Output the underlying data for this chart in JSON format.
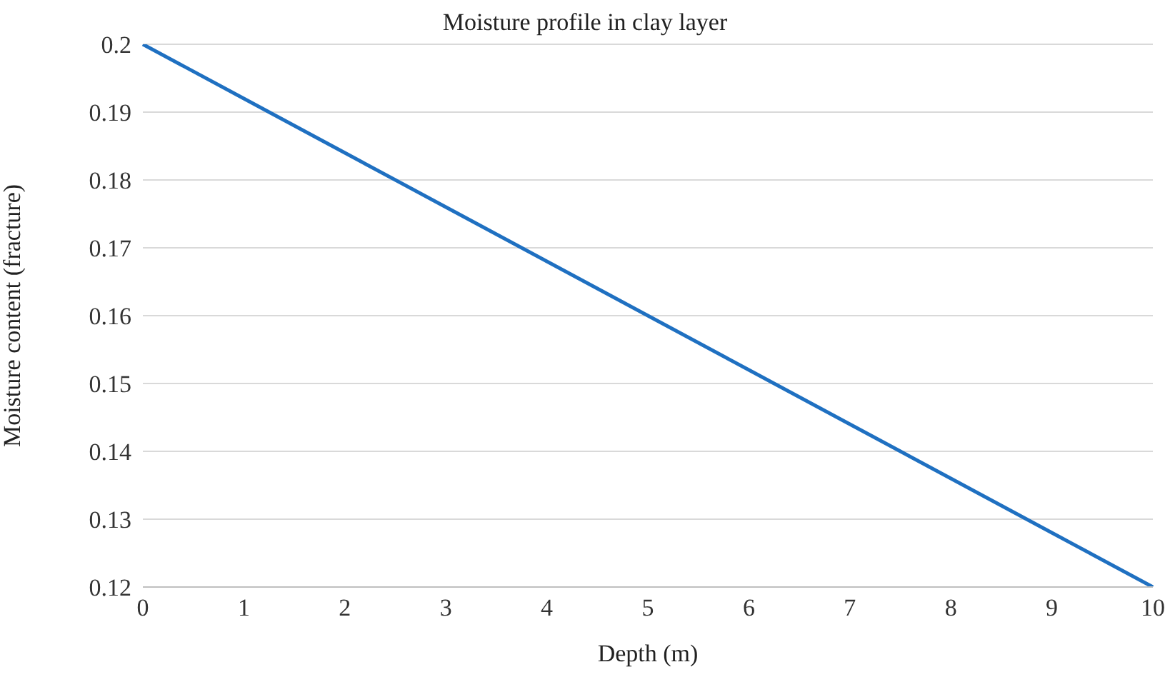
{
  "chart_data": {
    "type": "line",
    "title": "Moisture profile in clay layer",
    "xlabel": "Depth (m)",
    "ylabel": "Moisture content (fracture)",
    "categories": [
      "0",
      "1",
      "2",
      "3",
      "4",
      "5",
      "6",
      "7",
      "8",
      "9",
      "10"
    ],
    "series": [
      {
        "color": "#1f70c1",
        "values": [
          0.2,
          0.192,
          0.184,
          0.176,
          0.168,
          0.16,
          0.152,
          0.144,
          0.136,
          0.128,
          0.12
        ]
      }
    ],
    "ylim": [
      0.12,
      0.2
    ],
    "yticks": [
      0.12,
      0.13,
      0.14,
      0.15,
      0.16,
      0.17,
      0.18,
      0.19,
      0.2
    ],
    "grid": "y",
    "legend": false,
    "marker": "none",
    "line_style": "solid"
  }
}
